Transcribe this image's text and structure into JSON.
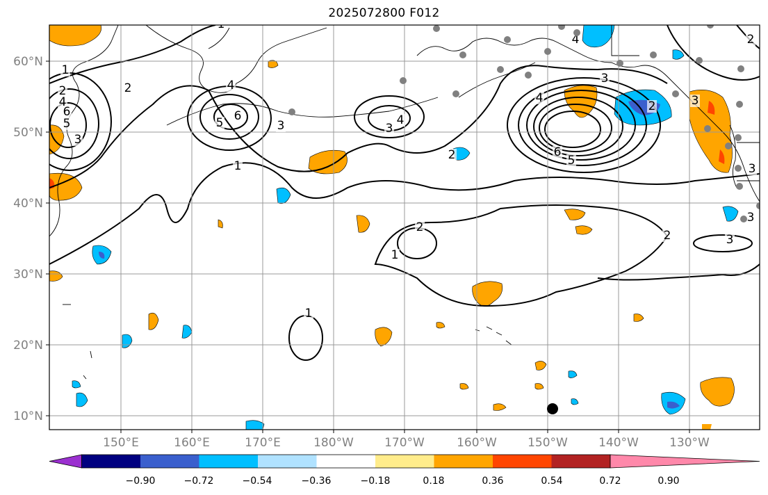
{
  "title": "2025072800 F012",
  "lat_labels": [
    "60°N",
    "50°N",
    "40°N",
    "30°N",
    "20°N",
    "10°N"
  ],
  "lon_labels": [
    "150°E",
    "160°E",
    "170°E",
    "180°W",
    "170°W",
    "160°W",
    "150°W",
    "140°W",
    "130°W"
  ],
  "colorbar": {
    "ticks": [
      "−0.90",
      "−0.72",
      "−0.54",
      "−0.36",
      "−0.18",
      "0.18",
      "0.36",
      "0.54",
      "0.72",
      "0.90"
    ],
    "colors": [
      "#9b30d0",
      "#000080",
      "#3a5fcd",
      "#00bfff",
      "#b0e2ff",
      "#ffffff",
      "#ffec8b",
      "#ffa500",
      "#ff4500",
      "#b22222",
      "#ff88aa"
    ]
  },
  "contour_labels": [
    "1",
    "2",
    "3",
    "4",
    "5",
    "6",
    "2",
    "3",
    "4",
    "5",
    "6",
    "1",
    "2",
    "3",
    "4",
    "3",
    "2",
    "3",
    "4",
    "5",
    "6",
    "2",
    "3",
    "2",
    "1",
    "1",
    "2",
    "3",
    "3",
    "4",
    "1"
  ],
  "colors": {
    "land_outline": "#000000",
    "grid": "#999999",
    "contour": "#000000",
    "station": "#808080",
    "marker": "#000000"
  }
}
